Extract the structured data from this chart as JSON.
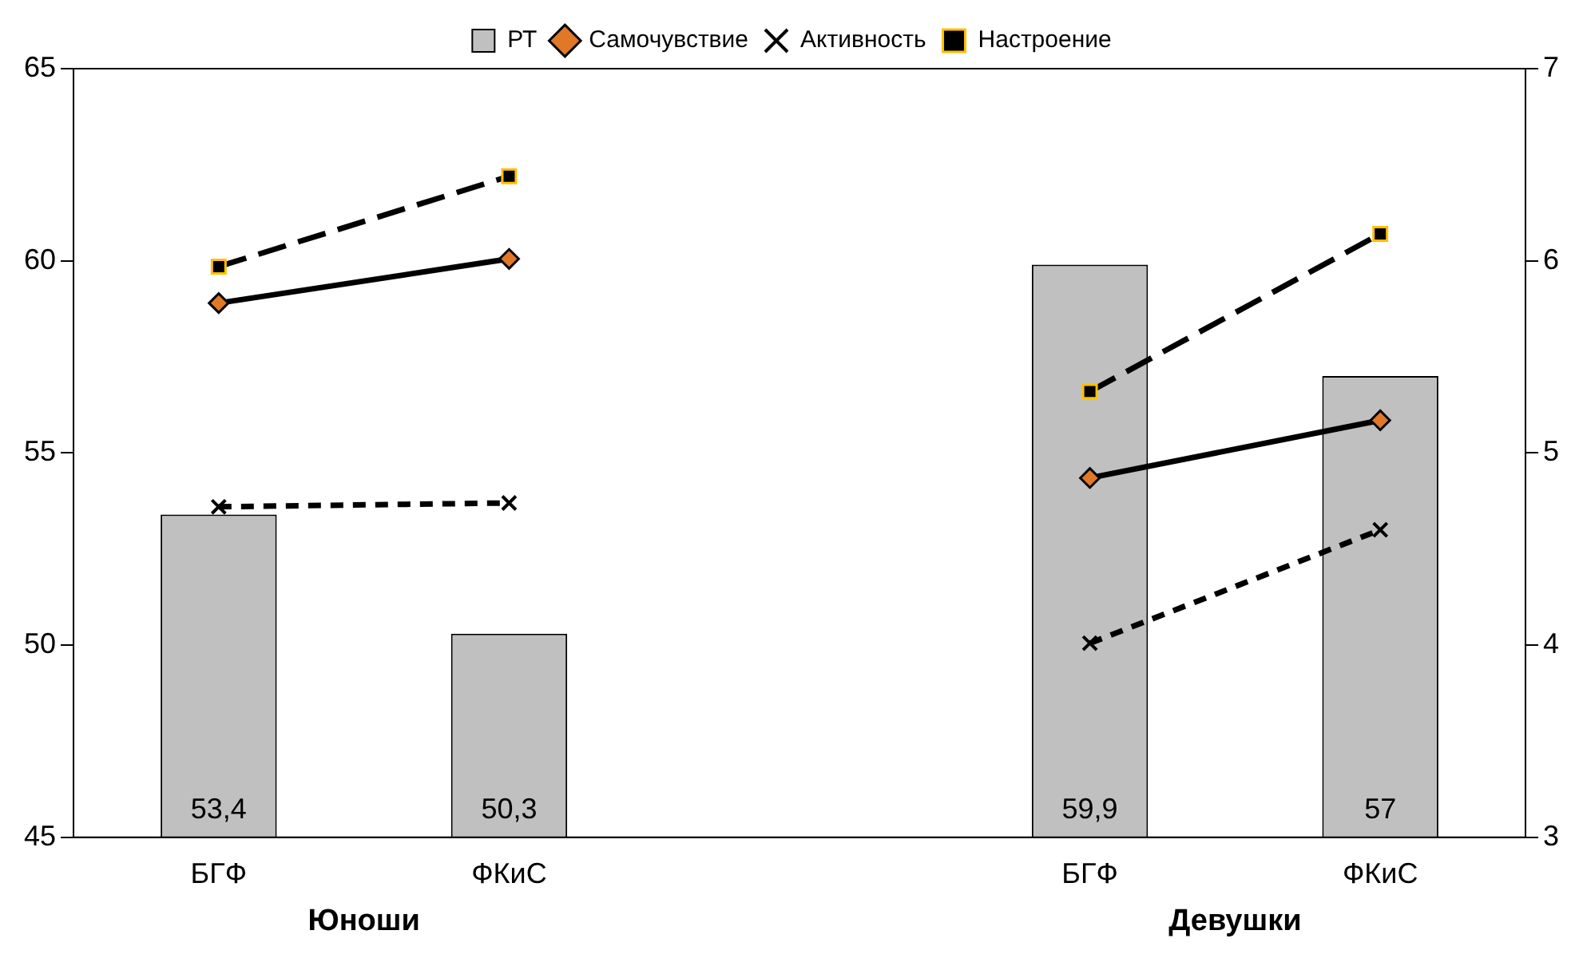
{
  "chart_data": {
    "type": "bar",
    "categories": [
      "БГФ",
      "ФКиС",
      null,
      "БГФ",
      "ФКиС"
    ],
    "series": [
      {
        "name": "РТ",
        "color": "#c0c0c0",
        "values": [
          53.4,
          50.3,
          null,
          59.9,
          57
        ],
        "value_labels": [
          "53,4",
          "50,3",
          null,
          "59,9",
          "57"
        ]
      },
      {
        "name": "Самочувствие",
        "type": "line",
        "axis": "y2",
        "color": "#000000",
        "marker": "diamond",
        "line_style": "solid",
        "values": [
          5.78,
          6.01,
          null,
          4.87,
          5.17
        ]
      },
      {
        "name": "Активность",
        "type": "line",
        "axis": "y2",
        "color": "#000000",
        "marker": "cross",
        "line_style": "dotted",
        "values": [
          4.72,
          4.74,
          null,
          4.01,
          4.6
        ]
      },
      {
        "name": "Настроение",
        "type": "line",
        "axis": "y2",
        "color": "#000000",
        "marker": "square",
        "line_style": "dashed",
        "values": [
          5.97,
          6.44,
          null,
          5.32,
          6.14
        ]
      }
    ],
    "ylim": [
      45,
      65
    ],
    "yticks": [
      45,
      50,
      55,
      60,
      65
    ],
    "y2lim": [
      3,
      7
    ],
    "y2ticks": [
      3,
      4,
      5,
      6,
      7
    ],
    "annotations": [
      "Юноши",
      "Девушки"
    ],
    "grid": false,
    "legend": "top"
  }
}
